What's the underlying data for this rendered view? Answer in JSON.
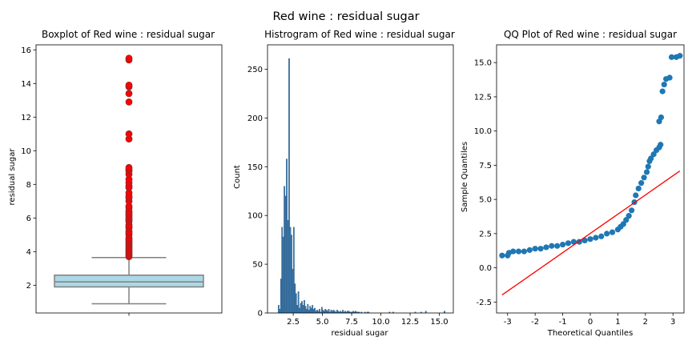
{
  "figure": {
    "suptitle": "Red wine : residual sugar"
  },
  "colors": {
    "box_fill": "#add8e6",
    "box_edge": "#808080",
    "outlier": "#ff0000",
    "hist": "#3a75a8",
    "qq_points": "#1f77b4",
    "qq_line": "#ff0000"
  },
  "chart_data": [
    {
      "type": "box",
      "title": "Boxplot of Red wine : residual sugar",
      "xlabel": "",
      "ylabel": "residual sugar",
      "ylim": [
        0.35,
        16.3
      ],
      "yticks": [
        2,
        4,
        6,
        8,
        10,
        12,
        14,
        16
      ],
      "stats": {
        "whisker_low": 0.9,
        "q1": 1.9,
        "median": 2.2,
        "q3": 2.6,
        "whisker_high": 3.65
      },
      "outliers": [
        3.7,
        3.8,
        3.9,
        4.0,
        4.1,
        4.2,
        4.3,
        4.4,
        4.5,
        4.6,
        4.7,
        4.8,
        5.0,
        5.1,
        5.2,
        5.4,
        5.5,
        5.6,
        5.8,
        5.9,
        6.0,
        6.1,
        6.2,
        6.3,
        6.4,
        6.6,
        6.7,
        7.0,
        7.2,
        7.3,
        7.5,
        7.8,
        7.9,
        8.1,
        8.3,
        8.6,
        8.8,
        8.9,
        9.0,
        10.7,
        11.0,
        12.9,
        13.4,
        13.8,
        13.9,
        15.4,
        15.5
      ]
    },
    {
      "type": "bar",
      "title": "Histrogram of Red wine : residual sugar",
      "xlabel": "residual sugar",
      "ylabel": "Count",
      "xlim": [
        0.3,
        16.2
      ],
      "ylim": [
        0,
        275
      ],
      "xticks": [
        2.5,
        5.0,
        7.5,
        10.0,
        12.5,
        15.0
      ],
      "yticks": [
        0,
        50,
        100,
        150,
        200,
        250
      ],
      "bin_width": 0.1,
      "bin_starts": [
        1.2,
        1.3,
        1.4,
        1.5,
        1.6,
        1.7,
        1.8,
        1.9,
        2.0,
        2.1,
        2.2,
        2.3,
        2.4,
        2.5,
        2.6,
        2.7,
        2.8,
        2.9,
        3.0,
        3.1,
        3.2,
        3.3,
        3.4,
        3.5,
        3.6,
        3.7,
        3.8,
        3.9,
        4.0,
        4.1,
        4.2,
        4.3,
        4.4,
        4.5,
        4.6,
        4.7,
        4.8,
        4.9,
        5.0,
        5.1,
        5.2,
        5.3,
        5.4,
        5.5,
        5.6,
        5.7,
        5.8,
        5.9,
        6.0,
        6.1,
        6.2,
        6.3,
        6.4,
        6.5,
        6.6,
        6.7,
        6.8,
        6.9,
        7.0,
        7.1,
        7.2,
        7.3,
        7.4,
        7.5,
        7.6,
        7.7,
        7.8,
        7.9,
        8.0,
        8.1,
        8.3,
        8.6,
        8.8,
        8.9,
        10.7,
        11.0,
        12.9,
        13.4,
        13.8,
        15.4
      ],
      "counts": [
        8,
        4,
        35,
        88,
        78,
        130,
        120,
        158,
        95,
        261,
        88,
        80,
        45,
        88,
        30,
        20,
        8,
        22,
        5,
        10,
        12,
        8,
        13,
        7,
        4,
        9,
        3,
        7,
        5,
        8,
        4,
        5,
        2,
        3,
        2,
        4,
        1,
        6,
        3,
        2,
        4,
        3,
        2,
        4,
        1,
        3,
        2,
        3,
        2,
        1,
        3,
        2,
        1,
        2,
        1,
        3,
        1,
        2,
        1,
        2,
        2,
        1,
        1,
        1,
        2,
        1,
        2,
        1,
        1,
        1,
        1,
        1,
        1,
        1,
        1,
        1,
        1,
        1,
        2,
        2
      ]
    },
    {
      "type": "scatter",
      "title": "QQ Plot of Red wine : residual sugar",
      "xlabel": "Theoretical Quantiles",
      "ylabel": "Sample Quantiles",
      "xlim": [
        -3.4,
        3.4
      ],
      "ylim": [
        -3.3,
        16.3
      ],
      "xticks": [
        -3,
        -2,
        -1,
        0,
        1,
        2,
        3
      ],
      "yticks": [
        -2.5,
        0.0,
        2.5,
        5.0,
        7.5,
        10.0,
        12.5,
        15.0
      ],
      "points": [
        [
          -3.2,
          0.9
        ],
        [
          -3.0,
          0.9
        ],
        [
          -2.95,
          1.1
        ],
        [
          -2.8,
          1.2
        ],
        [
          -2.6,
          1.2
        ],
        [
          -2.4,
          1.2
        ],
        [
          -2.2,
          1.3
        ],
        [
          -2.0,
          1.4
        ],
        [
          -1.8,
          1.4
        ],
        [
          -1.6,
          1.5
        ],
        [
          -1.4,
          1.6
        ],
        [
          -1.2,
          1.6
        ],
        [
          -1.0,
          1.7
        ],
        [
          -0.8,
          1.8
        ],
        [
          -0.6,
          1.9
        ],
        [
          -0.4,
          1.9
        ],
        [
          -0.2,
          2.0
        ],
        [
          0.0,
          2.1
        ],
        [
          0.2,
          2.2
        ],
        [
          0.4,
          2.3
        ],
        [
          0.6,
          2.5
        ],
        [
          0.8,
          2.6
        ],
        [
          1.0,
          2.8
        ],
        [
          1.1,
          3.0
        ],
        [
          1.2,
          3.2
        ],
        [
          1.3,
          3.5
        ],
        [
          1.4,
          3.8
        ],
        [
          1.5,
          4.2
        ],
        [
          1.6,
          4.8
        ],
        [
          1.65,
          5.3
        ],
        [
          1.75,
          5.8
        ],
        [
          1.85,
          6.2
        ],
        [
          1.95,
          6.6
        ],
        [
          2.05,
          7.0
        ],
        [
          2.1,
          7.4
        ],
        [
          2.15,
          7.8
        ],
        [
          2.2,
          8.0
        ],
        [
          2.3,
          8.3
        ],
        [
          2.4,
          8.6
        ],
        [
          2.5,
          8.8
        ],
        [
          2.55,
          9.0
        ],
        [
          2.5,
          10.7
        ],
        [
          2.57,
          11.0
        ],
        [
          2.62,
          12.9
        ],
        [
          2.68,
          13.4
        ],
        [
          2.75,
          13.8
        ],
        [
          2.88,
          13.9
        ],
        [
          2.95,
          15.4
        ],
        [
          3.12,
          15.4
        ],
        [
          3.25,
          15.5
        ]
      ],
      "reference_line": {
        "x": [
          -3.2,
          3.25
        ],
        "y": [
          -1.98,
          7.08
        ]
      }
    }
  ]
}
